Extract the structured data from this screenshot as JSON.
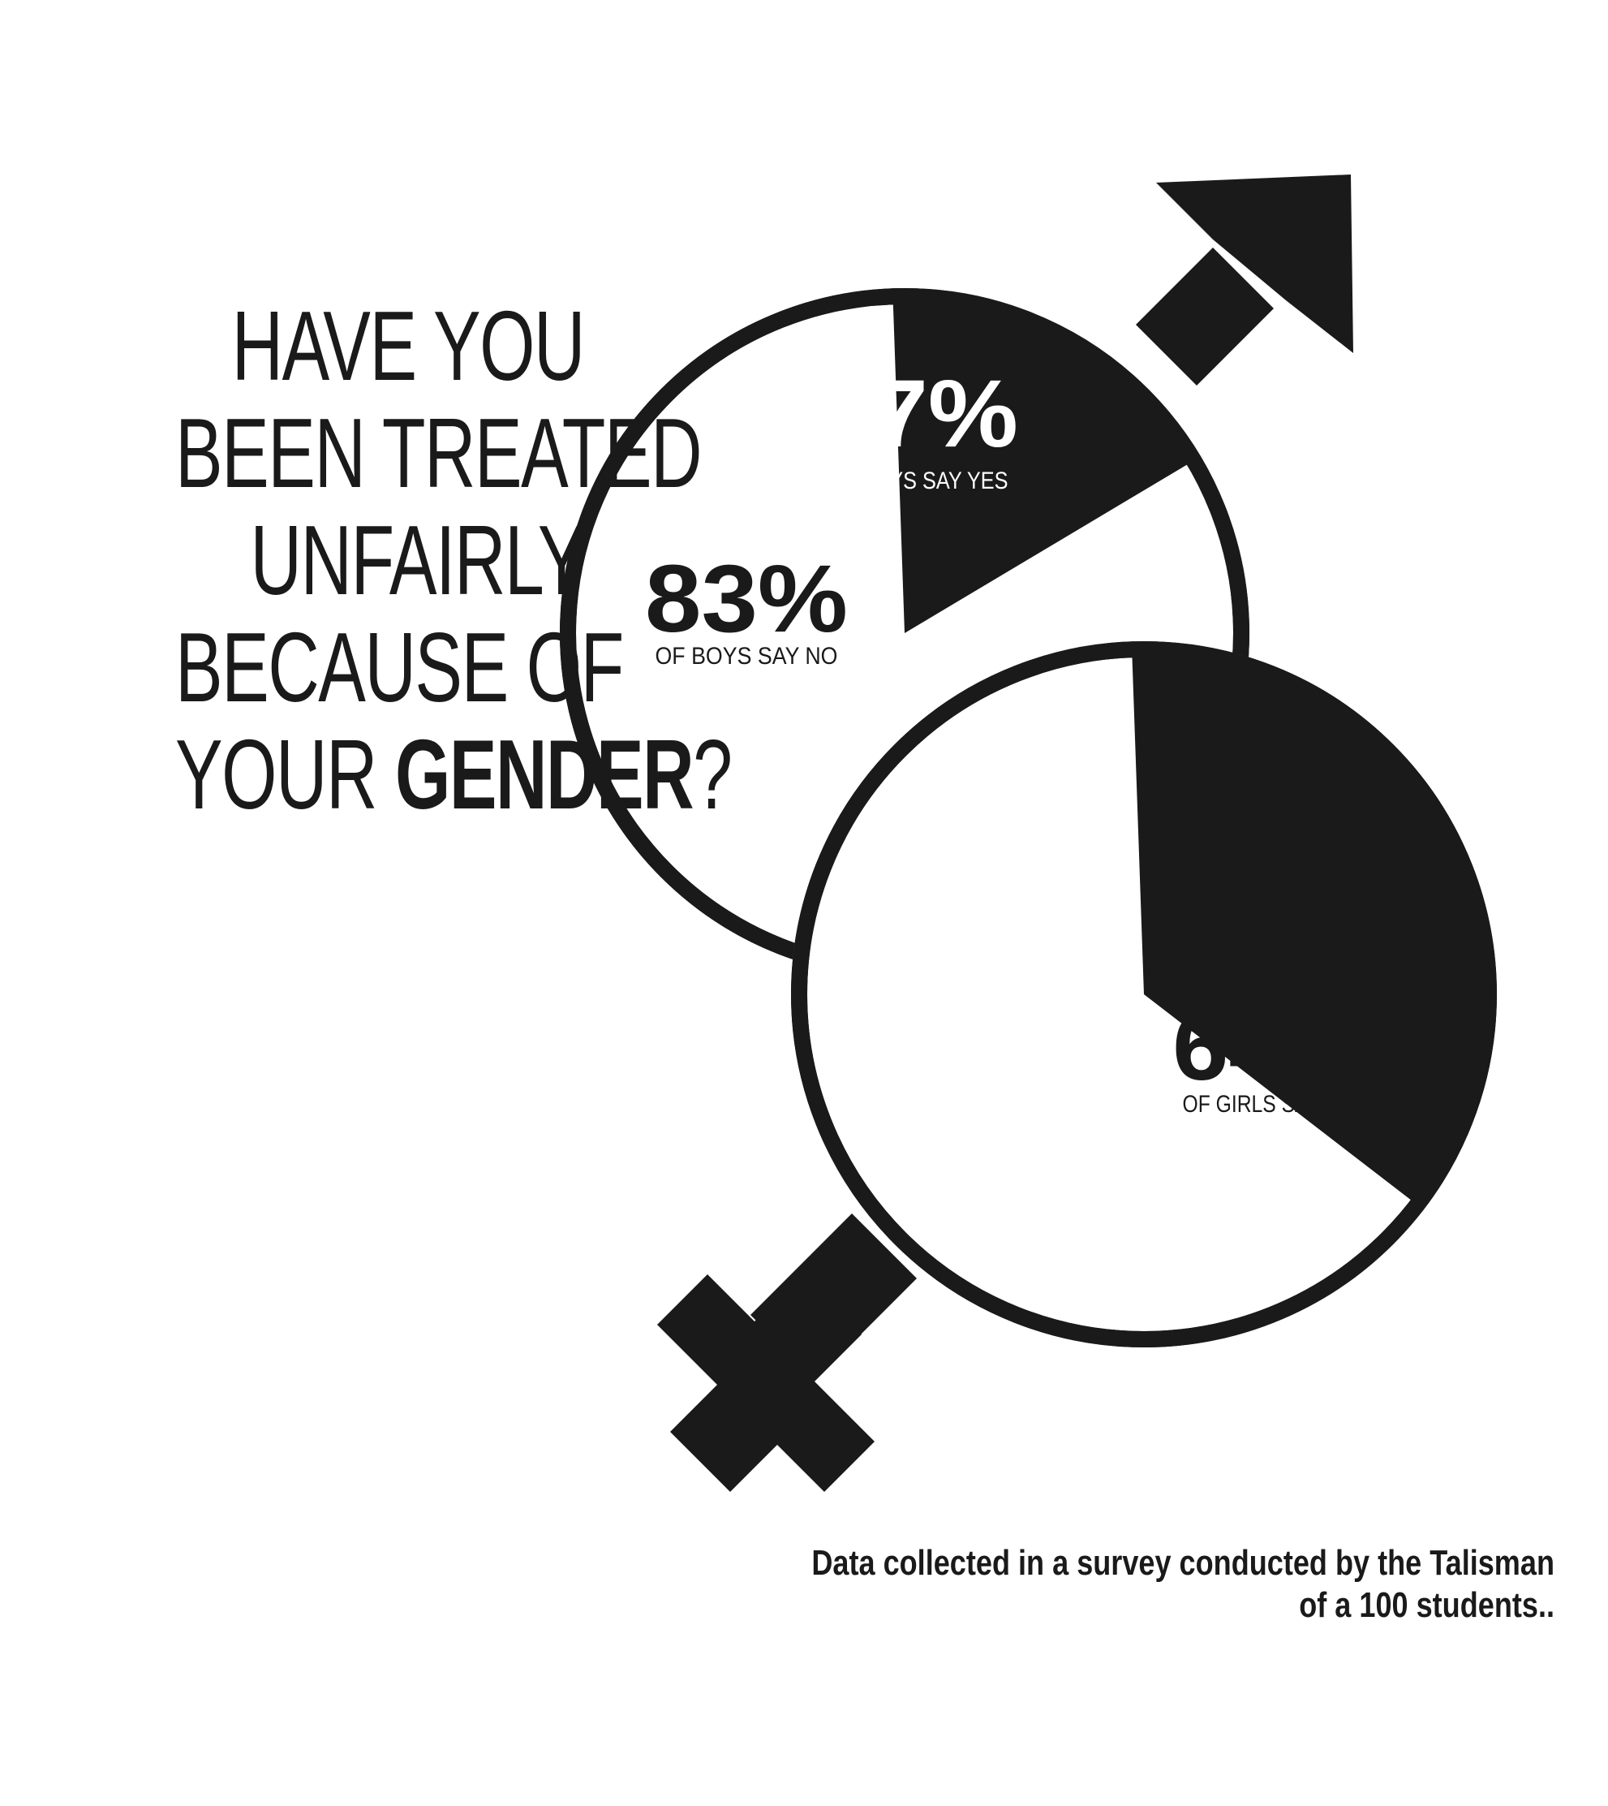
{
  "question": {
    "line1": "HAVE YOU",
    "line2": "BEEN TREATED",
    "line3": "UNFAIRLY",
    "line4": "BECAUSE OF",
    "line5_prefix": "YOUR ",
    "line5_bold": "GENDER",
    "line5_suffix": "?"
  },
  "footnote": {
    "line1": "Data collected in a survey conducted by the Talisman",
    "line2": "of a 100  students.."
  },
  "colors": {
    "ink": "#1a1a1a",
    "paper": "#ffffff"
  },
  "chart_data": [
    {
      "type": "pie",
      "group": "boys",
      "icon": "male-symbol",
      "slices": [
        {
          "value": 17,
          "pct_label": "17%",
          "sub_label": "OF BOYS SAY YES",
          "fill": "#1a1a1a",
          "text_color": "#ffffff"
        },
        {
          "value": 83,
          "pct_label": "83%",
          "sub_label": "OF BOYS SAY NO",
          "fill": "#ffffff",
          "text_color": "#1a1a1a"
        }
      ]
    },
    {
      "type": "pie",
      "group": "girls",
      "icon": "female-symbol",
      "slices": [
        {
          "value": 36,
          "pct_label": "36%",
          "sub_label": "OF GIRLS SAY NO",
          "fill": "#1a1a1a",
          "text_color": "#ffffff"
        },
        {
          "value": 64,
          "pct_label": "64%",
          "sub_label": "OF GIRLS SAY YES",
          "fill": "#ffffff",
          "text_color": "#1a1a1a"
        }
      ]
    }
  ]
}
